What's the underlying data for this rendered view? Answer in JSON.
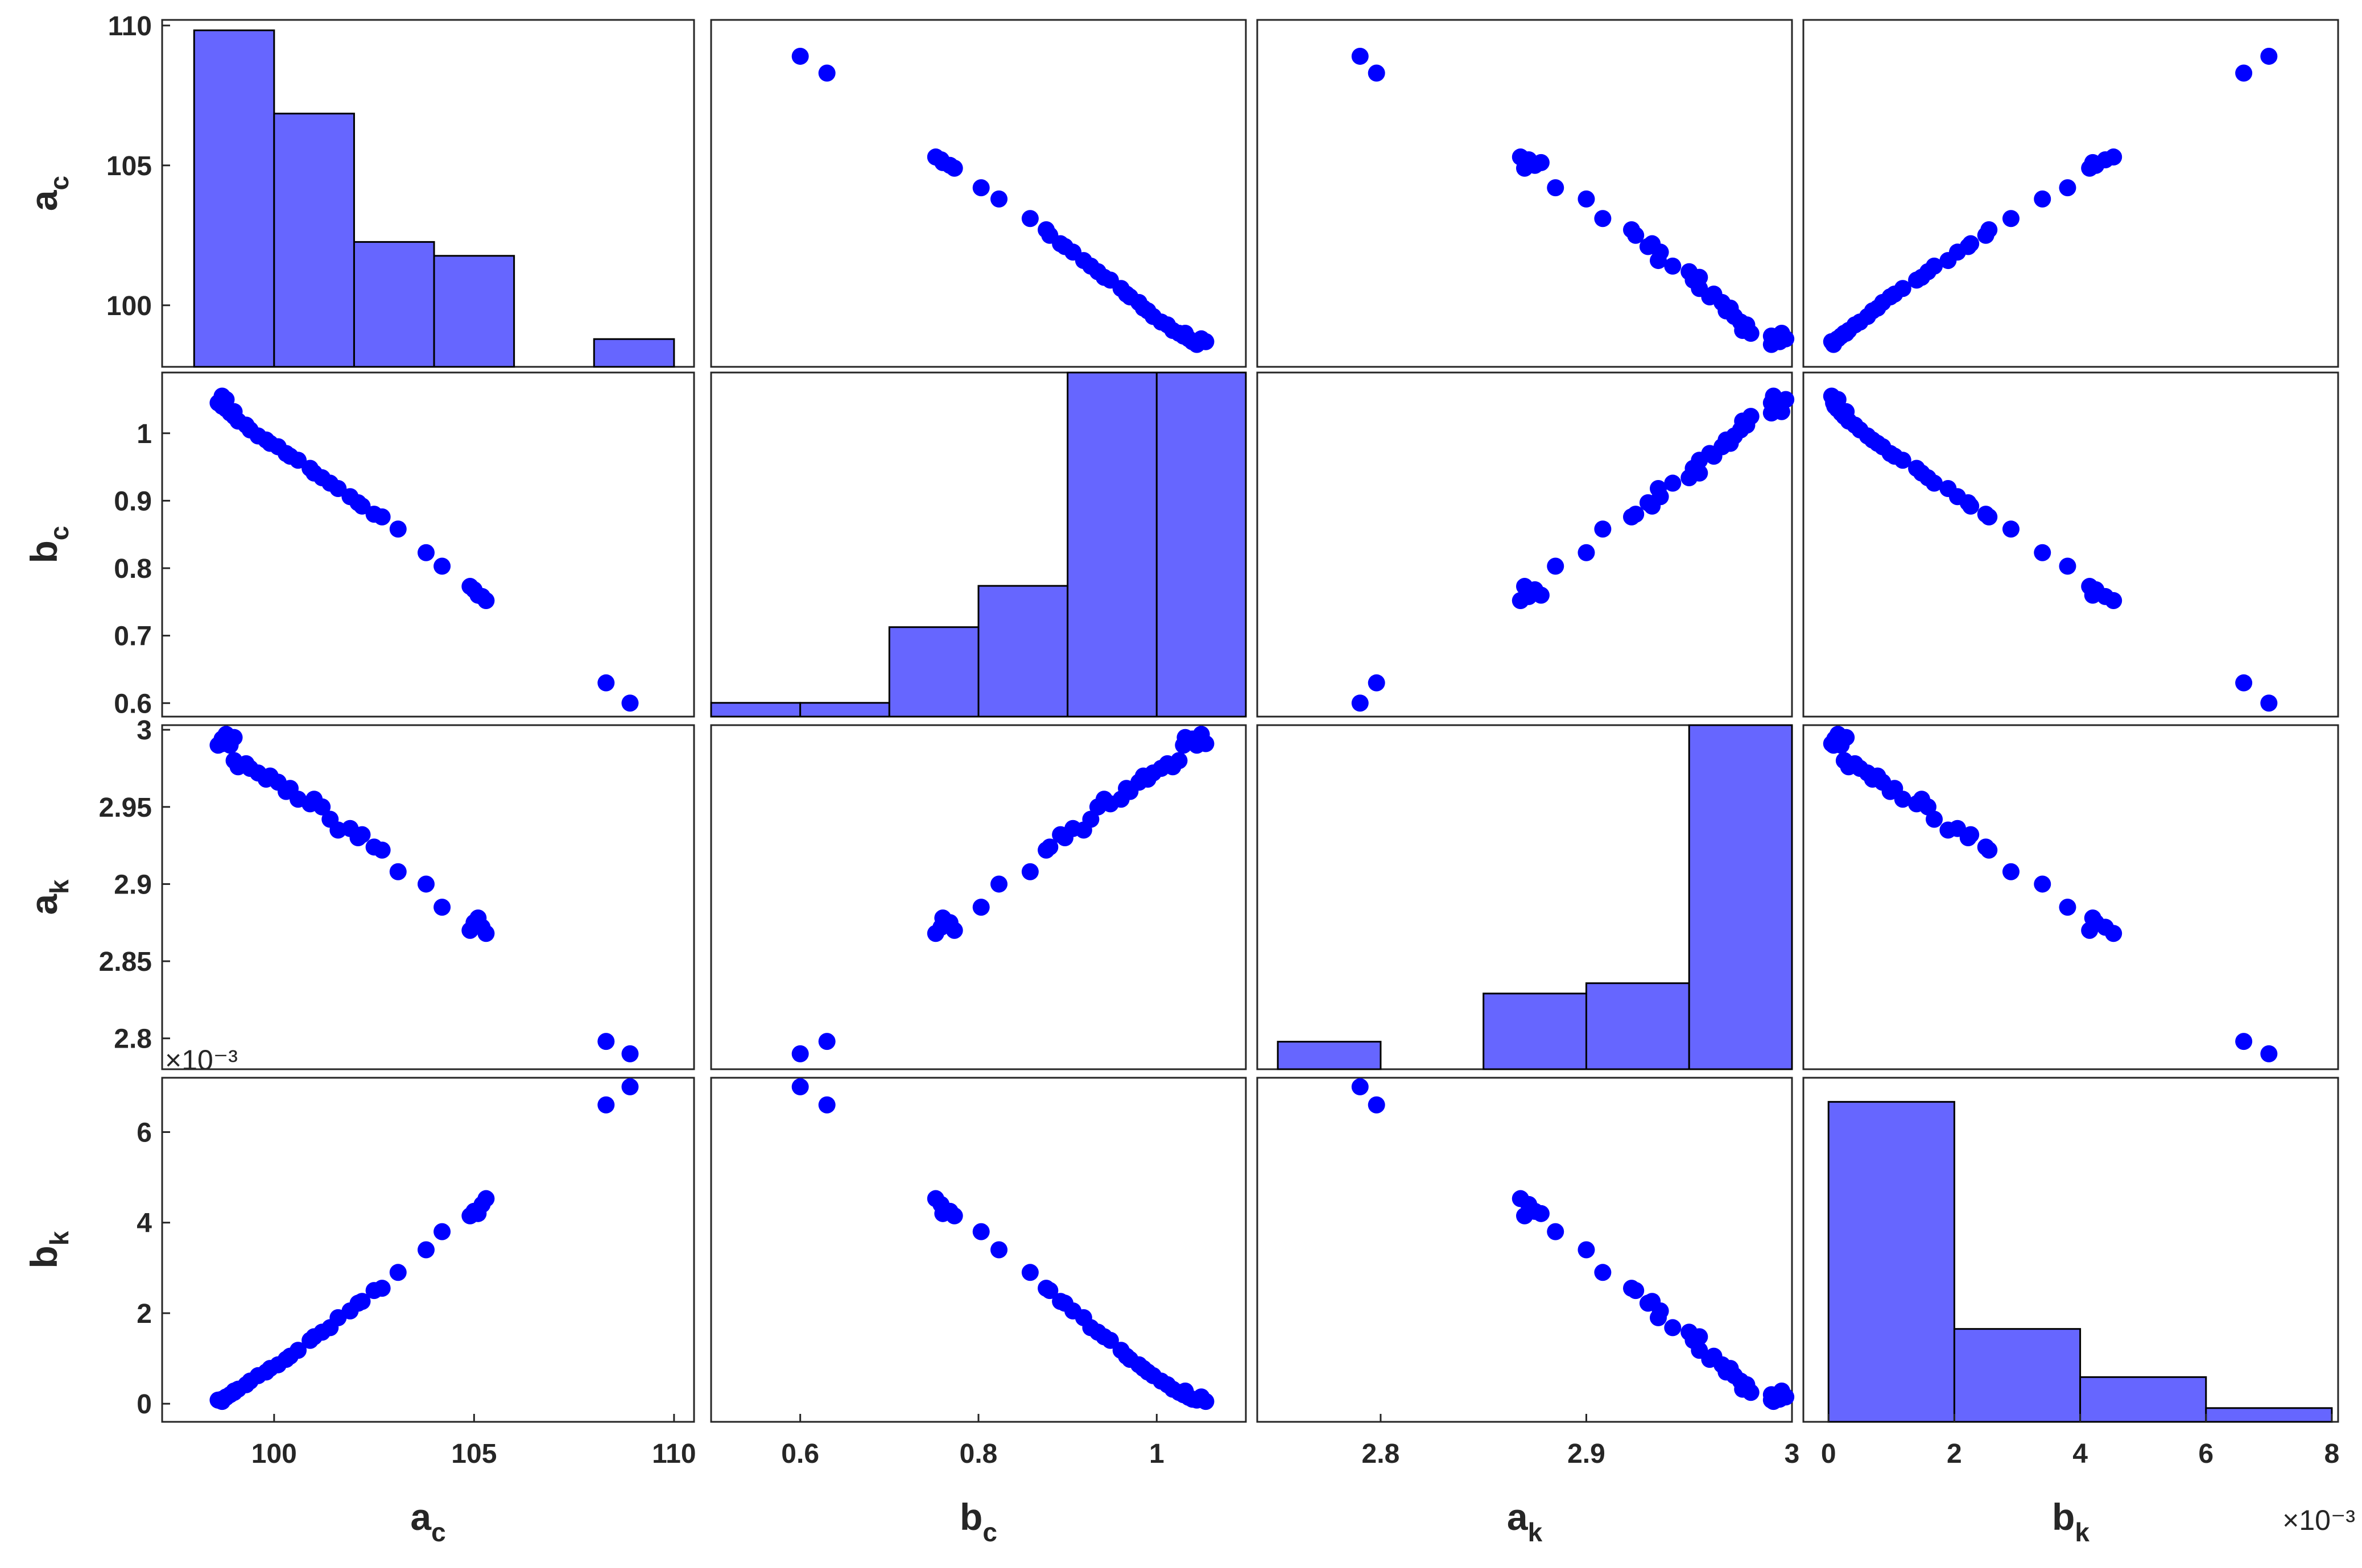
{
  "chart_data": {
    "type": "scatter",
    "layout": "scatter-matrix",
    "variables": [
      {
        "base": "a",
        "sub": "c",
        "lim": [
          97.8,
          110.2
        ],
        "ticks": [
          100,
          105,
          110
        ],
        "tick_labels": [
          "100",
          "105",
          "110"
        ],
        "exp_label": ""
      },
      {
        "base": "b",
        "sub": "c",
        "lim": [
          0.58,
          1.09
        ],
        "ticks": [
          0.6,
          0.7,
          0.8,
          0.9,
          1
        ],
        "tick_labels": [
          "0.6",
          "0.7",
          "0.8",
          "0.9",
          "1"
        ],
        "exp_label": ""
      },
      {
        "base": "a",
        "sub": "k",
        "lim": [
          2.78,
          3.003
        ],
        "ticks": [
          2.8,
          2.85,
          2.9,
          2.95,
          3
        ],
        "tick_labels": [
          "2.8",
          "2.85",
          "2.9",
          "2.95",
          "3"
        ],
        "exp_label": ""
      },
      {
        "base": "b",
        "sub": "k",
        "lim": [
          -0.0004,
          0.0072
        ],
        "ticks": [
          0,
          0.002,
          0.004,
          0.006
        ],
        "tick_labels": [
          "0",
          "2",
          "4",
          "6"
        ],
        "exp_label": "×10⁻³"
      }
    ],
    "x_axes": [
      {
        "lim": [
          97.2,
          110.5
        ],
        "ticks": [
          100,
          105,
          110
        ],
        "tick_labels": [
          "100",
          "105",
          "110"
        ],
        "exp_label": ""
      },
      {
        "lim": [
          0.5,
          1.1
        ],
        "ticks": [
          0.6,
          0.8,
          1
        ],
        "tick_labels": [
          "0.6",
          "0.8",
          "1"
        ],
        "exp_label": ""
      },
      {
        "lim": [
          2.74,
          3.0
        ],
        "ticks": [
          2.8,
          2.9,
          3
        ],
        "tick_labels": [
          "2.8",
          "2.9",
          "3"
        ],
        "exp_label": ""
      },
      {
        "lim": [
          -0.0004,
          0.0081
        ],
        "ticks": [
          0,
          0.002,
          0.004,
          0.006,
          0.008
        ],
        "tick_labels": [
          "0",
          "2",
          "4",
          "6",
          "8"
        ],
        "exp_label": "×10⁻³"
      }
    ],
    "histograms": [
      {
        "edges": [
          98,
          100,
          102,
          104,
          106,
          108,
          110
        ],
        "heights": [
          0.97,
          0.73,
          0.36,
          0.32,
          0.0,
          0.08
        ]
      },
      {
        "edges": [
          0.5,
          0.6,
          0.7,
          0.8,
          0.9,
          1.0,
          1.1
        ],
        "heights": [
          0.04,
          0.04,
          0.26,
          0.38,
          1.0,
          1.0
        ]
      },
      {
        "edges": [
          2.75,
          2.8,
          2.85,
          2.9,
          2.95,
          3.0
        ],
        "heights": [
          0.08,
          0.0,
          0.22,
          0.25,
          1.0
        ]
      },
      {
        "edges": [
          0,
          0.002,
          0.004,
          0.006,
          0.008
        ],
        "heights": [
          0.93,
          0.27,
          0.13,
          0.04
        ]
      }
    ],
    "points": [
      [
        108.9,
        0.6,
        2.79,
        0.007
      ],
      [
        108.3,
        0.63,
        2.798,
        0.0066
      ],
      [
        105.3,
        0.752,
        2.868,
        0.00453
      ],
      [
        105.2,
        0.758,
        2.872,
        0.0044
      ],
      [
        105.0,
        0.768,
        2.875,
        0.00425
      ],
      [
        104.9,
        0.773,
        2.87,
        0.00415
      ],
      [
        105.1,
        0.76,
        2.878,
        0.0042
      ],
      [
        104.2,
        0.803,
        2.885,
        0.0038
      ],
      [
        103.8,
        0.823,
        2.9,
        0.0034
      ],
      [
        103.1,
        0.858,
        2.908,
        0.0029
      ],
      [
        102.7,
        0.876,
        2.922,
        0.00255
      ],
      [
        102.5,
        0.88,
        2.924,
        0.0025
      ],
      [
        102.2,
        0.892,
        2.932,
        0.00226
      ],
      [
        102.1,
        0.897,
        2.93,
        0.00222
      ],
      [
        101.9,
        0.906,
        2.936,
        0.00205
      ],
      [
        101.6,
        0.918,
        2.935,
        0.0019
      ],
      [
        101.4,
        0.926,
        2.942,
        0.00168
      ],
      [
        101.2,
        0.934,
        2.95,
        0.00158
      ],
      [
        101.0,
        0.941,
        2.955,
        0.00148
      ],
      [
        100.9,
        0.948,
        2.952,
        0.0014
      ],
      [
        100.6,
        0.96,
        2.955,
        0.00118
      ],
      [
        100.4,
        0.966,
        2.962,
        0.00105
      ],
      [
        100.3,
        0.97,
        2.96,
        0.00098
      ],
      [
        100.1,
        0.98,
        2.966,
        0.00086
      ],
      [
        99.9,
        0.985,
        2.97,
        0.00078
      ],
      [
        99.8,
        0.99,
        2.968,
        0.0007
      ],
      [
        99.6,
        0.996,
        2.972,
        0.00062
      ],
      [
        99.4,
        1.005,
        2.975,
        0.0005
      ],
      [
        99.3,
        1.012,
        2.978,
        0.00042
      ],
      [
        99.1,
        1.018,
        2.976,
        0.00032
      ],
      [
        99.0,
        1.025,
        2.98,
        0.00025
      ],
      [
        98.9,
        1.03,
        2.99,
        0.0002
      ],
      [
        98.8,
        1.036,
        2.992,
        0.00014
      ],
      [
        98.7,
        1.04,
        2.994,
        0.0001
      ],
      [
        98.6,
        1.045,
        2.99,
        8e-05
      ],
      [
        98.8,
        1.05,
        2.997,
        0.00015
      ],
      [
        99.0,
        1.032,
        2.995,
        0.00028
      ],
      [
        98.7,
        1.055,
        2.991,
        5e-05
      ]
    ],
    "grid": false,
    "legend": "none"
  },
  "colors": {
    "marker": "#0000ff",
    "bar_fill": "#6666ff",
    "bar_edge": "#000000",
    "axes": "#262626"
  }
}
